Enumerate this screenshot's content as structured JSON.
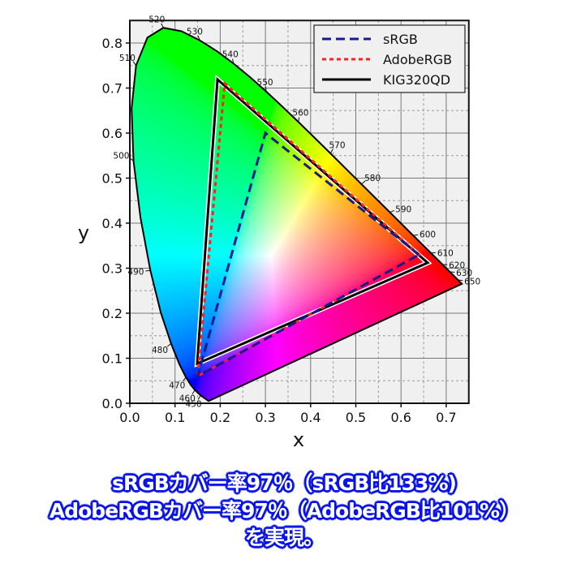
{
  "chart_data": {
    "type": "line",
    "xlabel": "x",
    "ylabel": "y",
    "xlim": [
      0,
      0.75
    ],
    "ylim": [
      0,
      0.85
    ],
    "xticks": [
      "0.0",
      "0.1",
      "0.2",
      "0.3",
      "0.4",
      "0.5",
      "0.6",
      "0.7"
    ],
    "yticks": [
      "0.0",
      "0.1",
      "0.2",
      "0.3",
      "0.4",
      "0.5",
      "0.6",
      "0.7",
      "0.8"
    ],
    "grid": true,
    "legend_position": "top-right",
    "spectral_locus": [
      [
        0.1741,
        0.005
      ],
      [
        0.1566,
        0.0177
      ],
      [
        0.151,
        0.0227
      ],
      [
        0.144,
        0.0297
      ],
      [
        0.1355,
        0.0399
      ],
      [
        0.1241,
        0.0578
      ],
      [
        0.1096,
        0.0868
      ],
      [
        0.0913,
        0.1327
      ],
      [
        0.0687,
        0.2007
      ],
      [
        0.0454,
        0.295
      ],
      [
        0.0235,
        0.4127
      ],
      [
        0.0082,
        0.5384
      ],
      [
        0.0039,
        0.6548
      ],
      [
        0.0139,
        0.7502
      ],
      [
        0.0389,
        0.812
      ],
      [
        0.0743,
        0.8338
      ],
      [
        0.1142,
        0.8262
      ],
      [
        0.1547,
        0.8059
      ],
      [
        0.1929,
        0.7816
      ],
      [
        0.2296,
        0.7543
      ],
      [
        0.2658,
        0.7243
      ],
      [
        0.3016,
        0.6923
      ],
      [
        0.3373,
        0.6589
      ],
      [
        0.3731,
        0.6245
      ],
      [
        0.4087,
        0.5896
      ],
      [
        0.4441,
        0.5547
      ],
      [
        0.4788,
        0.5202
      ],
      [
        0.5125,
        0.4866
      ],
      [
        0.5448,
        0.4544
      ],
      [
        0.5752,
        0.4242
      ],
      [
        0.6029,
        0.3965
      ],
      [
        0.627,
        0.3725
      ],
      [
        0.6482,
        0.3514
      ],
      [
        0.6658,
        0.334
      ],
      [
        0.6915,
        0.3083
      ],
      [
        0.7079,
        0.292
      ],
      [
        0.726,
        0.274
      ],
      [
        0.7347,
        0.2653
      ]
    ],
    "wavelength_labels": [
      {
        "label": "450",
        "x": 0.1566,
        "y": 0.0177
      },
      {
        "label": "460",
        "x": 0.144,
        "y": 0.0297
      },
      {
        "label": "470",
        "x": 0.1241,
        "y": 0.0578
      },
      {
        "label": "480",
        "x": 0.0913,
        "y": 0.1327
      },
      {
        "label": "490",
        "x": 0.0454,
        "y": 0.295
      },
      {
        "label": "500",
        "x": 0.0082,
        "y": 0.5384
      },
      {
        "label": "510",
        "x": 0.0139,
        "y": 0.7502
      },
      {
        "label": "520",
        "x": 0.0743,
        "y": 0.8338
      },
      {
        "label": "530",
        "x": 0.1547,
        "y": 0.8059
      },
      {
        "label": "540",
        "x": 0.2296,
        "y": 0.7543
      },
      {
        "label": "550",
        "x": 0.3016,
        "y": 0.6923
      },
      {
        "label": "560",
        "x": 0.3731,
        "y": 0.6245
      },
      {
        "label": "570",
        "x": 0.4441,
        "y": 0.5547
      },
      {
        "label": "580",
        "x": 0.5125,
        "y": 0.4866
      },
      {
        "label": "590",
        "x": 0.5752,
        "y": 0.4242
      },
      {
        "label": "600",
        "x": 0.627,
        "y": 0.3725
      },
      {
        "label": "610",
        "x": 0.6658,
        "y": 0.334
      },
      {
        "label": "620",
        "x": 0.6915,
        "y": 0.3083
      },
      {
        "label": "630",
        "x": 0.7079,
        "y": 0.292
      },
      {
        "label": "650",
        "x": 0.726,
        "y": 0.274
      }
    ],
    "series": [
      {
        "name": "sRGB",
        "style": "dashed",
        "color": "#1a1a8c",
        "points": [
          [
            0.64,
            0.33
          ],
          [
            0.3,
            0.6
          ],
          [
            0.15,
            0.06
          ]
        ]
      },
      {
        "name": "AdobeRGB",
        "style": "dotted",
        "color": "#ff2020",
        "points": [
          [
            0.64,
            0.33
          ],
          [
            0.21,
            0.71
          ],
          [
            0.15,
            0.06
          ]
        ]
      },
      {
        "name": "KIG320QD",
        "style": "solid",
        "color": "#000000",
        "points": [
          [
            0.659,
            0.312
          ],
          [
            0.194,
            0.719
          ],
          [
            0.149,
            0.088
          ]
        ]
      }
    ]
  },
  "caption": {
    "line1": "sRGBカバー率97％（sRGB比133%)",
    "line2": "AdobeRGBカバー率97％（AdobeRGB比101%）",
    "line3": "を実現。"
  },
  "colors": {
    "caption_text": "#ffffff",
    "caption_outline": "#0a14e6",
    "plot_bg": "#f0f0f0"
  }
}
